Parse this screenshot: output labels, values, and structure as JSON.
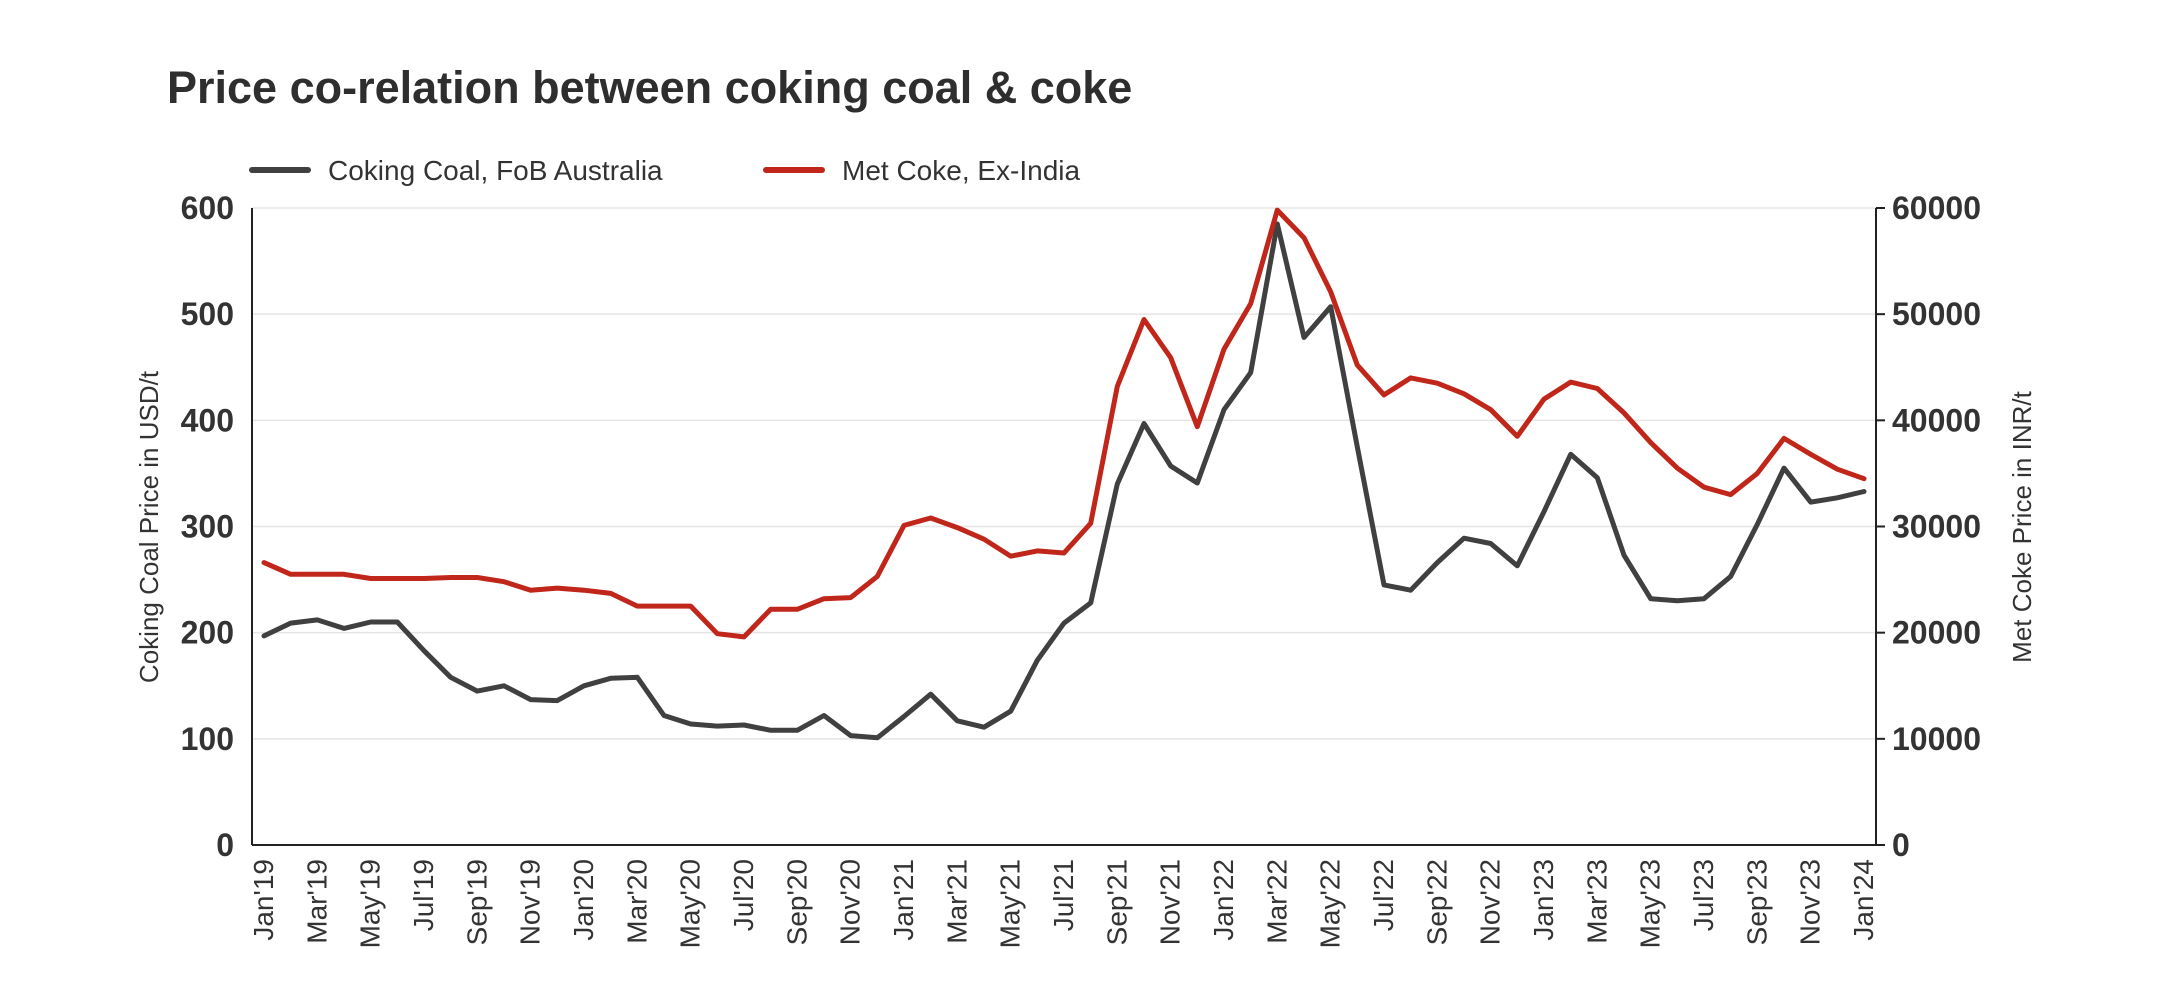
{
  "chart_data": {
    "type": "line",
    "title": "Price co-relation between coking coal & coke",
    "ylabel": "Coking Coal Price in USD/t",
    "y2label": "Met Coke Price in INR/t",
    "ylim": [
      0,
      600
    ],
    "y2lim": [
      0,
      60000
    ],
    "yticks": [
      "0",
      "100",
      "200",
      "300",
      "400",
      "500",
      "600"
    ],
    "y2ticks": [
      "0",
      "10000",
      "20000",
      "30000",
      "40000",
      "50000",
      "60000"
    ],
    "x_tick_labels": [
      "Jan'19",
      "Mar'19",
      "May'19",
      "Jul'19",
      "Sep'19",
      "Nov'19",
      "Jan'20",
      "Mar'20",
      "May'20",
      "Jul'20",
      "Sep'20",
      "Nov'20",
      "Jan'21",
      "Mar'21",
      "May'21",
      "Jul'21",
      "Sep'21",
      "Nov'21",
      "Jan'22",
      "Mar'22",
      "May'22",
      "Jul'22",
      "Sep'22",
      "Nov'22",
      "Jan'23",
      "Mar'23",
      "May'23",
      "Jul'23",
      "Sep'23",
      "Nov'23",
      "Jan'24"
    ],
    "x": [
      "Jan'19",
      "Feb'19",
      "Mar'19",
      "Apr'19",
      "May'19",
      "Jun'19",
      "Jul'19",
      "Aug'19",
      "Sep'19",
      "Oct'19",
      "Nov'19",
      "Dec'19",
      "Jan'20",
      "Feb'20",
      "Mar'20",
      "Apr'20",
      "May'20",
      "Jun'20",
      "Jul'20",
      "Aug'20",
      "Sep'20",
      "Oct'20",
      "Nov'20",
      "Dec'20",
      "Jan'21",
      "Feb'21",
      "Mar'21",
      "Apr'21",
      "May'21",
      "Jun'21",
      "Jul'21",
      "Aug'21",
      "Sep'21",
      "Oct'21",
      "Nov'21",
      "Dec'21",
      "Jan'22",
      "Feb'22",
      "Mar'22",
      "Apr'22",
      "May'22",
      "Jun'22",
      "Jul'22",
      "Aug'22",
      "Sep'22",
      "Oct'22",
      "Nov'22",
      "Dec'22",
      "Jan'23",
      "Feb'23",
      "Mar'23",
      "Apr'23",
      "May'23",
      "Jun'23",
      "Jul'23",
      "Aug'23",
      "Sep'23",
      "Oct'23",
      "Nov'23",
      "Dec'23",
      "Jan'24"
    ],
    "grid": true,
    "legend_position": "top-left",
    "series": [
      {
        "name": "Coking Coal, FoB Australia",
        "axis": "left",
        "color": "#404040",
        "values": [
          197,
          209,
          212,
          204,
          210,
          210,
          183,
          158,
          145,
          150,
          137,
          136,
          150,
          157,
          158,
          122,
          114,
          112,
          113,
          108,
          108,
          122,
          103,
          101,
          121,
          142,
          117,
          111,
          126,
          174,
          209,
          228,
          340,
          397,
          357,
          341,
          410,
          445,
          585,
          478,
          507,
          375,
          245,
          240,
          266,
          289,
          284,
          263,
          314,
          368,
          346,
          273,
          232,
          230,
          232,
          253,
          302,
          355,
          323,
          327,
          333
        ]
      },
      {
        "name": "Met Coke, Ex-India",
        "axis": "right",
        "color": "#c0271a",
        "values": [
          26600,
          25500,
          25500,
          25500,
          25100,
          25100,
          25100,
          25200,
          25200,
          24800,
          24000,
          24200,
          24000,
          23700,
          22500,
          22500,
          22500,
          19900,
          19600,
          22200,
          22200,
          23200,
          23300,
          25300,
          30100,
          30800,
          29900,
          28800,
          27200,
          27700,
          27500,
          30300,
          43200,
          49500,
          45900,
          39400,
          46700,
          51000,
          59800,
          57200,
          52100,
          45200,
          42400,
          44000,
          43500,
          42500,
          41000,
          38500,
          42000,
          43600,
          43000,
          40700,
          37900,
          35500,
          33700,
          33000,
          35000,
          38300,
          36800,
          35400,
          34500
        ]
      }
    ]
  }
}
